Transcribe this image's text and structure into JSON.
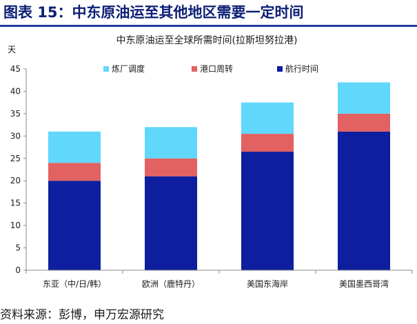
{
  "figure": {
    "title": "图表 15：中东原油运至其他地区需要一定时间",
    "source": "资料来源：彭博，申万宏源研究"
  },
  "colors": {
    "title": "#0b1e74",
    "rule": "#1f3e9a",
    "sailing": "#0d1f9e",
    "port": "#e26161",
    "refinery": "#61d7fb",
    "axis": "#8a8a8a"
  },
  "chart_data": {
    "type": "bar",
    "stacked": true,
    "title": "中东原油运至全球所需时间(拉斯坦努拉港)",
    "ylabel": "天",
    "xlabel": "",
    "ylim": [
      0,
      45
    ],
    "yticks": [
      0,
      5,
      10,
      15,
      20,
      25,
      30,
      35,
      40,
      45
    ],
    "grid": false,
    "legend_position": "top",
    "categories": [
      "东亚（中/日/韩）",
      "欧洲（鹿特丹）",
      "美国东海岸",
      "美国墨西哥湾"
    ],
    "series": [
      {
        "name": "航行时间",
        "color": "#0d1f9e",
        "values": [
          20,
          21,
          26.5,
          31
        ]
      },
      {
        "name": "港口周转",
        "color": "#e26161",
        "values": [
          4,
          4,
          4,
          4
        ]
      },
      {
        "name": "炼厂调度",
        "color": "#61d7fb",
        "values": [
          7,
          7,
          7,
          7
        ]
      }
    ],
    "legend_order": [
      "炼厂调度",
      "港口周转",
      "航行时间"
    ]
  }
}
